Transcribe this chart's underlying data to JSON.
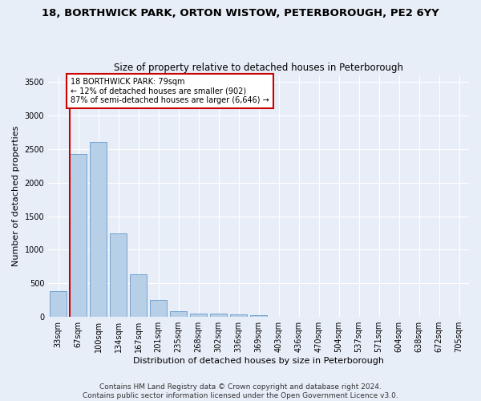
{
  "title1": "18, BORTHWICK PARK, ORTON WISTOW, PETERBOROUGH, PE2 6YY",
  "title2": "Size of property relative to detached houses in Peterborough",
  "xlabel": "Distribution of detached houses by size in Peterborough",
  "ylabel": "Number of detached properties",
  "categories": [
    "33sqm",
    "67sqm",
    "100sqm",
    "134sqm",
    "167sqm",
    "201sqm",
    "235sqm",
    "268sqm",
    "302sqm",
    "336sqm",
    "369sqm",
    "403sqm",
    "436sqm",
    "470sqm",
    "504sqm",
    "537sqm",
    "571sqm",
    "604sqm",
    "638sqm",
    "672sqm",
    "705sqm"
  ],
  "values": [
    390,
    2420,
    2600,
    1240,
    640,
    255,
    90,
    55,
    55,
    40,
    25,
    0,
    0,
    0,
    0,
    0,
    0,
    0,
    0,
    0,
    0
  ],
  "bar_color": "#b8cfe8",
  "bar_edge_color": "#6699cc",
  "annotation_text": "18 BORTHWICK PARK: 79sqm\n← 12% of detached houses are smaller (902)\n87% of semi-detached houses are larger (6,646) →",
  "annotation_box_facecolor": "#ffffff",
  "annotation_box_edgecolor": "#cc0000",
  "vline_color": "#cc0000",
  "vline_x_index": 1,
  "ylim": [
    0,
    3600
  ],
  "yticks": [
    0,
    500,
    1000,
    1500,
    2000,
    2500,
    3000,
    3500
  ],
  "background_color": "#e8eef8",
  "grid_color": "#ffffff",
  "footer": "Contains HM Land Registry data © Crown copyright and database right 2024.\nContains public sector information licensed under the Open Government Licence v3.0.",
  "title1_fontsize": 9.5,
  "title2_fontsize": 8.5,
  "xlabel_fontsize": 8,
  "ylabel_fontsize": 8,
  "tick_fontsize": 7,
  "annot_fontsize": 7,
  "footer_fontsize": 6.5
}
